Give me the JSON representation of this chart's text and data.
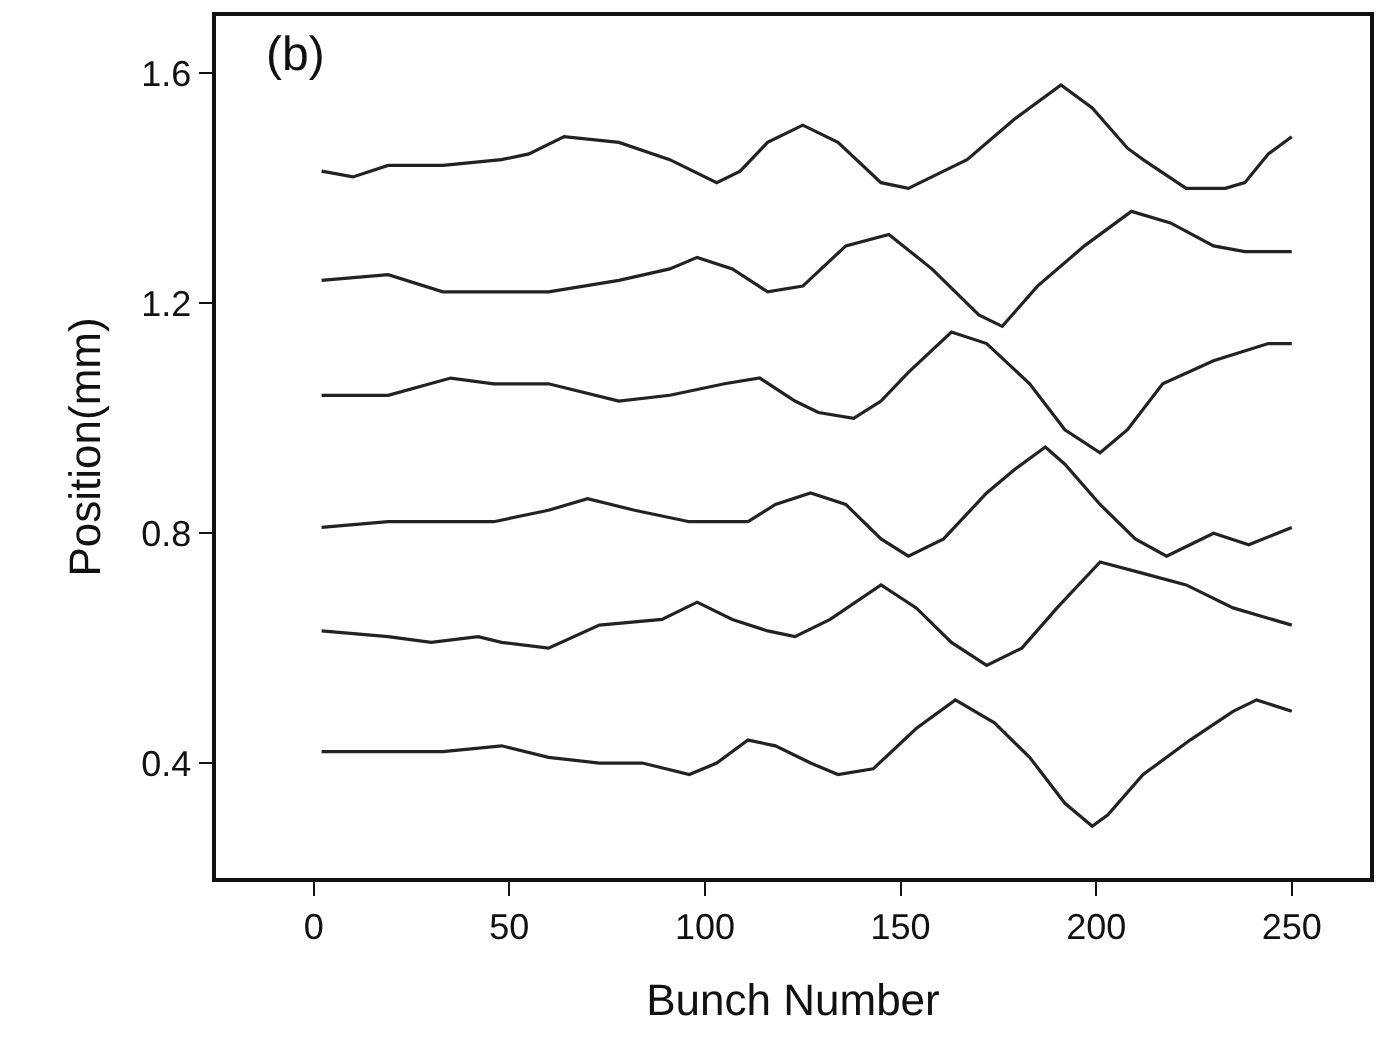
{
  "chart_data": {
    "type": "line",
    "xlabel": "Bunch Number",
    "ylabel": "Position(mm)",
    "annotations": [
      "(b)"
    ],
    "xlim": [
      -25,
      270
    ],
    "xticks": [
      0,
      50,
      100,
      150,
      200,
      250
    ],
    "ylim": [
      0.2,
      1.7
    ],
    "yticks": [
      0.4,
      0.8,
      1.2,
      1.6
    ],
    "grid": false,
    "marker": "none",
    "line_style": "solid",
    "series": [
      {
        "color": "#222222",
        "x": [
          2,
          10,
          19,
          33,
          48,
          55,
          64,
          78,
          91,
          103,
          109,
          116,
          125,
          134,
          145,
          152,
          161,
          167,
          179,
          191,
          199,
          208,
          212,
          223,
          233,
          238,
          244,
          250
        ],
        "values": [
          1.43,
          1.42,
          1.44,
          1.44,
          1.45,
          1.46,
          1.49,
          1.48,
          1.45,
          1.41,
          1.43,
          1.48,
          1.51,
          1.48,
          1.41,
          1.4,
          1.43,
          1.45,
          1.52,
          1.58,
          1.54,
          1.47,
          1.45,
          1.4,
          1.4,
          1.41,
          1.46,
          1.49
        ]
      },
      {
        "color": "#222222",
        "x": [
          2,
          19,
          33,
          46,
          60,
          78,
          91,
          98,
          107,
          116,
          125,
          136,
          147,
          158,
          170,
          176,
          185,
          197,
          209,
          219,
          230,
          238,
          250
        ],
        "values": [
          1.24,
          1.25,
          1.22,
          1.22,
          1.22,
          1.24,
          1.26,
          1.28,
          1.26,
          1.22,
          1.23,
          1.3,
          1.32,
          1.26,
          1.18,
          1.16,
          1.23,
          1.3,
          1.36,
          1.34,
          1.3,
          1.29,
          1.29
        ]
      },
      {
        "color": "#222222",
        "x": [
          2,
          19,
          35,
          46,
          60,
          78,
          91,
          105,
          114,
          123,
          129,
          138,
          145,
          152,
          163,
          172,
          183,
          192,
          201,
          208,
          217,
          230,
          244,
          250
        ],
        "values": [
          1.04,
          1.04,
          1.07,
          1.06,
          1.06,
          1.03,
          1.04,
          1.06,
          1.07,
          1.03,
          1.01,
          1.0,
          1.03,
          1.08,
          1.15,
          1.13,
          1.06,
          0.98,
          0.94,
          0.98,
          1.06,
          1.1,
          1.13,
          1.13
        ]
      },
      {
        "color": "#222222",
        "x": [
          2,
          19,
          33,
          46,
          60,
          70,
          82,
          96,
          111,
          118,
          127,
          136,
          145,
          152,
          161,
          172,
          179,
          187,
          192,
          201,
          210,
          218,
          224,
          230,
          239,
          250
        ],
        "values": [
          0.81,
          0.82,
          0.82,
          0.82,
          0.84,
          0.86,
          0.84,
          0.82,
          0.82,
          0.85,
          0.87,
          0.85,
          0.79,
          0.76,
          0.79,
          0.87,
          0.91,
          0.95,
          0.92,
          0.85,
          0.79,
          0.76,
          0.78,
          0.8,
          0.78,
          0.81
        ]
      },
      {
        "color": "#222222",
        "x": [
          2,
          19,
          30,
          42,
          48,
          60,
          73,
          89,
          98,
          107,
          116,
          123,
          132,
          145,
          154,
          163,
          172,
          181,
          190,
          201,
          212,
          223,
          235,
          250
        ],
        "values": [
          0.63,
          0.62,
          0.61,
          0.62,
          0.61,
          0.6,
          0.64,
          0.65,
          0.68,
          0.65,
          0.63,
          0.62,
          0.65,
          0.71,
          0.67,
          0.61,
          0.57,
          0.6,
          0.67,
          0.75,
          0.73,
          0.71,
          0.67,
          0.64
        ]
      },
      {
        "color": "#222222",
        "x": [
          2,
          19,
          33,
          48,
          60,
          73,
          84,
          96,
          103,
          111,
          118,
          127,
          134,
          143,
          154,
          164,
          174,
          183,
          192,
          199,
          203,
          212,
          224,
          235,
          241,
          250
        ],
        "values": [
          0.42,
          0.42,
          0.42,
          0.43,
          0.41,
          0.4,
          0.4,
          0.38,
          0.4,
          0.44,
          0.43,
          0.4,
          0.38,
          0.39,
          0.46,
          0.51,
          0.47,
          0.41,
          0.33,
          0.29,
          0.31,
          0.38,
          0.44,
          0.49,
          0.51,
          0.49
        ]
      }
    ]
  }
}
